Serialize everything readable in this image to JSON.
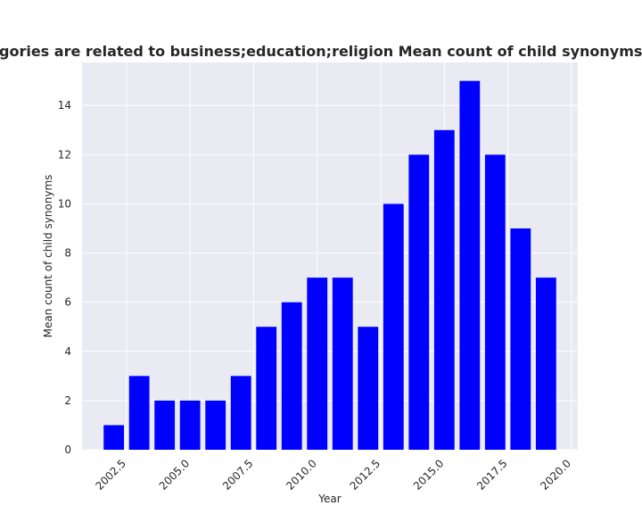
{
  "chart_data": {
    "type": "bar",
    "title": "gories are related to business;education;religion Mean count of child synonyms in privacy poli",
    "x_label": "Year",
    "y_label": "Mean count of child synonyms",
    "x": [
      2002,
      2003,
      2004,
      2005,
      2006,
      2007,
      2008,
      2009,
      2010,
      2011,
      2012,
      2013,
      2014,
      2015,
      2016,
      2017,
      2018,
      2019
    ],
    "values": [
      1,
      3,
      2,
      2,
      2,
      3,
      5,
      6,
      7,
      7,
      5,
      10,
      12,
      13,
      15,
      12,
      9,
      7
    ],
    "color": "#0000ff",
    "xlim": [
      2000.75,
      2020.25
    ],
    "xticks": [
      2002.5,
      {
        "value": 2005,
        "label": "2005.0"
      },
      2007.5,
      {
        "value": 2010,
        "label": "2010.0"
      },
      2012.5,
      {
        "value": 2015,
        "label": "2015.0"
      },
      2017.5,
      {
        "value": 2020,
        "label": "2020.0"
      }
    ],
    "ylim": [
      0,
      15.75
    ],
    "yticks": [
      0,
      2,
      4,
      6,
      8,
      10,
      12,
      14
    ],
    "grid": true
  }
}
